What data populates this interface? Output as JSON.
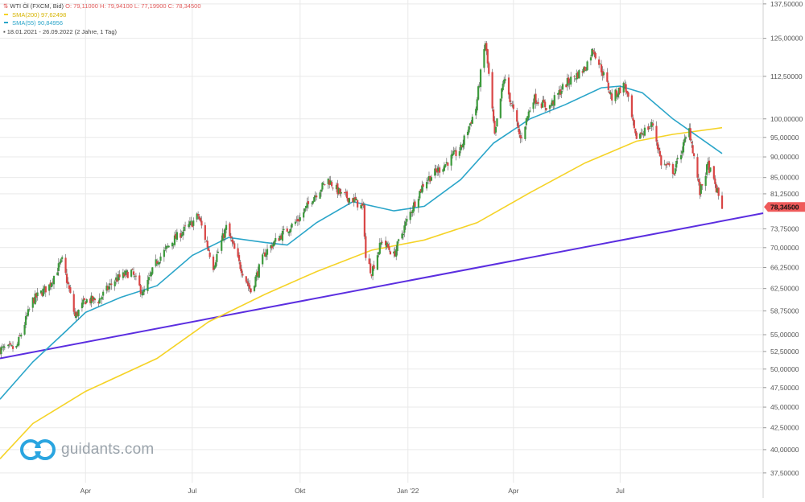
{
  "legend": {
    "instrument": "WTI Öl (FXCM, Bid)",
    "ohlc": "O: 79,11000   H: 79,94100   L: 77,19900   C: 78,34500",
    "sma200_label": "SMA(200)",
    "sma200_value": "97,62498",
    "sma55_label": "SMA(55)",
    "sma55_value": "90,84956",
    "range": "18.01.2021 - 26.09.2022",
    "interval": "(2 Jahre, 1 Tag)"
  },
  "brand": {
    "name": "guidants.com"
  },
  "last_price_label": "78,34500",
  "colors": {
    "up": "#3c9a3c",
    "down": "#d94545",
    "sma200": "#f5d327",
    "sma55": "#2aa5c9",
    "trendline": "#5b2ee0",
    "price_tag": "#ef5a5a",
    "grid": "#e9e9e9"
  },
  "chart_data": {
    "type": "candlestick",
    "title": "WTI Öl (FXCM, Bid)",
    "y_scale": "log",
    "ylim": [
      36.5,
      139
    ],
    "y_ticks": [
      {
        "label": "137,50000",
        "value": 137.5
      },
      {
        "label": "125,00000",
        "value": 125
      },
      {
        "label": "112,50000",
        "value": 112.5
      },
      {
        "label": "100,00000",
        "value": 100
      },
      {
        "label": "95,00000",
        "value": 95
      },
      {
        "label": "90,00000",
        "value": 90
      },
      {
        "label": "85,00000",
        "value": 85
      },
      {
        "label": "81,25000",
        "value": 81.25
      },
      {
        "label": "73,75000",
        "value": 73.75
      },
      {
        "label": "70,00000",
        "value": 70
      },
      {
        "label": "66,25000",
        "value": 66.25
      },
      {
        "label": "62,50000",
        "value": 62.5
      },
      {
        "label": "58,75000",
        "value": 58.75
      },
      {
        "label": "55,00000",
        "value": 55
      },
      {
        "label": "52,50000",
        "value": 52.5
      },
      {
        "label": "50,00000",
        "value": 50
      },
      {
        "label": "47,50000",
        "value": 47.5
      },
      {
        "label": "45,00000",
        "value": 45
      },
      {
        "label": "42,50000",
        "value": 42.5
      },
      {
        "label": "40,00000",
        "value": 40
      },
      {
        "label": "37,50000",
        "value": 37.5
      }
    ],
    "x_range": [
      "2021-01-18",
      "2022-10-31"
    ],
    "x_ticks": [
      {
        "label": "Apr",
        "date": "2021-04-01"
      },
      {
        "label": "Jul",
        "date": "2021-07-01"
      },
      {
        "label": "Okt",
        "date": "2021-10-01"
      },
      {
        "label": "Jan '22",
        "date": "2022-01-01"
      },
      {
        "label": "Apr",
        "date": "2022-04-01"
      },
      {
        "label": "Jul",
        "date": "2022-07-01"
      }
    ],
    "price_path": [
      [
        "2021-01-18",
        52.8
      ],
      [
        "2021-02-01",
        53.0
      ],
      [
        "2021-02-15",
        60.5
      ],
      [
        "2021-03-01",
        63.0
      ],
      [
        "2021-03-08",
        66.0
      ],
      [
        "2021-03-12",
        67.5
      ],
      [
        "2021-03-23",
        57.8
      ],
      [
        "2021-04-01",
        60.5
      ],
      [
        "2021-04-12",
        60.5
      ],
      [
        "2021-04-26",
        64.0
      ],
      [
        "2021-05-10",
        65.5
      ],
      [
        "2021-05-20",
        61.5
      ],
      [
        "2021-06-01",
        67.5
      ],
      [
        "2021-06-15",
        71.5
      ],
      [
        "2021-07-01",
        75.0
      ],
      [
        "2021-07-06",
        76.5
      ],
      [
        "2021-07-19",
        66.5
      ],
      [
        "2021-07-30",
        74.0
      ],
      [
        "2021-08-10",
        67.0
      ],
      [
        "2021-08-20",
        62.0
      ],
      [
        "2021-09-01",
        69.0
      ],
      [
        "2021-09-15",
        72.5
      ],
      [
        "2021-10-01",
        76.0
      ],
      [
        "2021-10-12",
        80.5
      ],
      [
        "2021-10-25",
        84.5
      ],
      [
        "2021-11-05",
        81.0
      ],
      [
        "2021-11-15",
        80.0
      ],
      [
        "2021-11-24",
        78.0
      ],
      [
        "2021-11-26",
        68.0
      ],
      [
        "2021-12-01",
        65.5
      ],
      [
        "2021-12-10",
        71.5
      ],
      [
        "2021-12-20",
        68.5
      ],
      [
        "2022-01-01",
        76.0
      ],
      [
        "2022-01-15",
        84.0
      ],
      [
        "2022-02-01",
        88.0
      ],
      [
        "2022-02-15",
        92.0
      ],
      [
        "2022-02-28",
        103.0
      ],
      [
        "2022-03-08",
        123.5
      ],
      [
        "2022-03-16",
        95.0
      ],
      [
        "2022-03-24",
        112.0
      ],
      [
        "2022-04-07",
        94.5
      ],
      [
        "2022-04-18",
        106.0
      ],
      [
        "2022-05-01",
        103.0
      ],
      [
        "2022-05-15",
        110.0
      ],
      [
        "2022-06-01",
        115.0
      ],
      [
        "2022-06-08",
        121.5
      ],
      [
        "2022-06-24",
        106.0
      ],
      [
        "2022-07-05",
        110.0
      ],
      [
        "2022-07-14",
        95.0
      ],
      [
        "2022-07-29",
        98.5
      ],
      [
        "2022-08-05",
        88.5
      ],
      [
        "2022-08-16",
        86.5
      ],
      [
        "2022-08-29",
        97.0
      ],
      [
        "2022-09-07",
        81.5
      ],
      [
        "2022-09-14",
        88.0
      ],
      [
        "2022-09-26",
        78.3
      ]
    ],
    "series": [
      {
        "name": "SMA(200)",
        "points": [
          [
            "2021-01-18",
            39.0
          ],
          [
            "2021-02-15",
            43.0
          ],
          [
            "2021-04-01",
            47.0
          ],
          [
            "2021-06-01",
            51.5
          ],
          [
            "2021-07-15",
            57.0
          ],
          [
            "2021-09-01",
            61.5
          ],
          [
            "2021-10-15",
            65.5
          ],
          [
            "2021-12-01",
            69.5
          ],
          [
            "2022-01-15",
            71.5
          ],
          [
            "2022-03-01",
            75.0
          ],
          [
            "2022-04-15",
            81.5
          ],
          [
            "2022-06-01",
            88.5
          ],
          [
            "2022-07-15",
            94.0
          ],
          [
            "2022-08-15",
            95.8
          ],
          [
            "2022-09-26",
            97.6
          ]
        ]
      },
      {
        "name": "SMA(55)",
        "points": [
          [
            "2021-01-18",
            46.0
          ],
          [
            "2021-02-15",
            51.0
          ],
          [
            "2021-03-15",
            55.5
          ],
          [
            "2021-04-01",
            58.5
          ],
          [
            "2021-05-01",
            61.0
          ],
          [
            "2021-06-01",
            63.0
          ],
          [
            "2021-07-01",
            68.5
          ],
          [
            "2021-08-01",
            72.0
          ],
          [
            "2021-09-01",
            71.0
          ],
          [
            "2021-09-20",
            70.5
          ],
          [
            "2021-10-15",
            75.0
          ],
          [
            "2021-11-15",
            79.5
          ],
          [
            "2021-12-20",
            77.5
          ],
          [
            "2022-01-15",
            78.5
          ],
          [
            "2022-02-15",
            84.5
          ],
          [
            "2022-03-15",
            93.5
          ],
          [
            "2022-04-15",
            100.0
          ],
          [
            "2022-05-15",
            104.0
          ],
          [
            "2022-06-15",
            109.0
          ],
          [
            "2022-07-01",
            109.5
          ],
          [
            "2022-07-20",
            107.5
          ],
          [
            "2022-08-15",
            100.0
          ],
          [
            "2022-09-26",
            90.85
          ]
        ]
      }
    ],
    "trendline": [
      [
        "2021-01-18",
        51.5
      ],
      [
        "2022-10-31",
        77.0
      ]
    ],
    "last_close": 78.345
  }
}
